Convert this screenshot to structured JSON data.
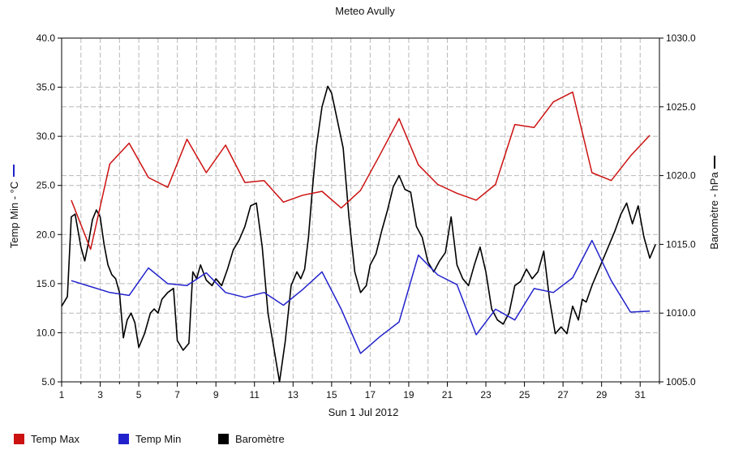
{
  "chart_data": {
    "type": "line",
    "title": "Meteo  Avully",
    "xlabel": "Sun 1 Jul 2012",
    "ylabel_left": "Temp Min - °C",
    "ylabel_right": "Baromètre - hPa",
    "xlim": [
      1,
      32
    ],
    "ylim_left": [
      5.0,
      40.0
    ],
    "ylim_right": [
      1005.0,
      1030.0
    ],
    "x_ticks": [
      1,
      3,
      5,
      7,
      9,
      11,
      13,
      15,
      17,
      19,
      21,
      23,
      25,
      27,
      29,
      31
    ],
    "x_tick_labels": [
      "1",
      "3",
      "5",
      "7",
      "9",
      "11",
      "13",
      "15",
      "17",
      "19",
      "21",
      "23",
      "25",
      "27",
      "29",
      "31"
    ],
    "y_left_ticks": [
      5,
      10,
      15,
      20,
      25,
      30,
      35,
      40
    ],
    "y_left_tick_labels": [
      "5.0",
      "10.0",
      "15.0",
      "20.0",
      "25.0",
      "30.0",
      "35.0",
      "40.0"
    ],
    "y_right_ticks": [
      1005,
      1010,
      1015,
      1020,
      1025,
      1030
    ],
    "y_right_tick_labels": [
      "1005.0",
      "1010.0",
      "1015.0",
      "1020.0",
      "1025.0",
      "1030.0"
    ],
    "grid": true,
    "legend_position": "bottom-left",
    "series": [
      {
        "name": "Temp Max",
        "color": "#cc1111",
        "axis": "left",
        "x": [
          1.5,
          2.5,
          3.5,
          4.5,
          5.5,
          6.5,
          7.5,
          8.5,
          9.5,
          10.5,
          11.5,
          12.5,
          13.5,
          14.5,
          15.5,
          16.5,
          17.5,
          18.5,
          19.5,
          20.5,
          21.5,
          22.5,
          23.5,
          24.5,
          25.5,
          26.5,
          27.5,
          28.5,
          29.5,
          30.5,
          31.5
        ],
        "values": [
          23.5,
          18.5,
          27.2,
          29.3,
          25.8,
          24.8,
          29.7,
          26.3,
          29.1,
          25.3,
          25.5,
          23.3,
          24.0,
          24.4,
          22.7,
          24.5,
          28.1,
          31.8,
          27.1,
          25.1,
          24.2,
          23.5,
          25.1,
          31.2,
          30.9,
          33.5,
          34.5,
          26.3,
          25.5,
          28.0,
          30.1
        ]
      },
      {
        "name": "Temp Min",
        "color": "#2222cc",
        "axis": "left",
        "x": [
          1.5,
          2.5,
          3.5,
          4.5,
          5.5,
          6.5,
          7.5,
          8.5,
          9.5,
          10.5,
          11.5,
          12.5,
          13.5,
          14.5,
          15.5,
          16.5,
          17.5,
          18.5,
          19.5,
          20.5,
          21.5,
          22.5,
          23.5,
          24.5,
          25.5,
          26.5,
          27.5,
          28.5,
          29.5,
          30.5,
          31.5
        ],
        "values": [
          15.3,
          14.7,
          14.1,
          13.8,
          16.6,
          15.0,
          14.8,
          16.1,
          14.1,
          13.6,
          14.1,
          12.8,
          14.4,
          16.2,
          12.4,
          7.9,
          9.6,
          11.1,
          17.9,
          15.9,
          14.9,
          9.8,
          12.4,
          11.3,
          14.5,
          14.1,
          15.6,
          19.4,
          15.3,
          12.1,
          12.2
        ]
      },
      {
        "name": "Baromètre",
        "color": "#000000",
        "axis": "right",
        "x": [
          1.0,
          1.3,
          1.5,
          1.7,
          2.0,
          2.2,
          2.4,
          2.6,
          2.8,
          3.0,
          3.2,
          3.4,
          3.6,
          3.8,
          4.0,
          4.2,
          4.4,
          4.6,
          4.8,
          5.0,
          5.3,
          5.6,
          5.8,
          6.0,
          6.2,
          6.5,
          6.8,
          7.0,
          7.3,
          7.6,
          7.8,
          8.0,
          8.2,
          8.5,
          8.8,
          9.0,
          9.3,
          9.6,
          9.9,
          10.2,
          10.5,
          10.8,
          11.1,
          11.4,
          11.7,
          12.0,
          12.3,
          12.6,
          12.9,
          13.2,
          13.4,
          13.6,
          13.8,
          14.0,
          14.2,
          14.5,
          14.8,
          15.0,
          15.3,
          15.6,
          15.9,
          16.2,
          16.5,
          16.8,
          17.0,
          17.3,
          17.6,
          17.9,
          18.2,
          18.5,
          18.8,
          19.1,
          19.4,
          19.7,
          20.0,
          20.3,
          20.6,
          20.9,
          21.2,
          21.5,
          21.8,
          22.1,
          22.4,
          22.7,
          23.0,
          23.3,
          23.6,
          23.9,
          24.2,
          24.5,
          24.8,
          25.1,
          25.4,
          25.7,
          26.0,
          26.3,
          26.6,
          26.9,
          27.2,
          27.5,
          27.8,
          28.0,
          28.2,
          28.5,
          28.8,
          29.1,
          29.4,
          29.7,
          30.0,
          30.3,
          30.6,
          30.9,
          31.2,
          31.5,
          31.8
        ],
        "values": [
          1010.5,
          1011.2,
          1017.0,
          1017.2,
          1014.8,
          1013.8,
          1015.2,
          1016.8,
          1017.5,
          1017.0,
          1015.0,
          1013.5,
          1012.8,
          1012.5,
          1011.5,
          1008.2,
          1009.5,
          1010.0,
          1009.3,
          1007.5,
          1008.5,
          1010.0,
          1010.3,
          1010.0,
          1011.0,
          1011.5,
          1011.8,
          1008.0,
          1007.3,
          1007.8,
          1013.0,
          1012.5,
          1013.5,
          1012.4,
          1012.0,
          1012.5,
          1012.0,
          1013.2,
          1014.6,
          1015.3,
          1016.3,
          1017.8,
          1018.0,
          1014.8,
          1010.0,
          1007.5,
          1005.0,
          1008.0,
          1012.0,
          1013.0,
          1012.5,
          1013.2,
          1015.5,
          1019.0,
          1022.0,
          1025.0,
          1026.5,
          1026.0,
          1024.0,
          1022.0,
          1017.0,
          1013.0,
          1011.5,
          1012.0,
          1013.5,
          1014.3,
          1016.0,
          1017.5,
          1019.2,
          1020.0,
          1019.0,
          1018.8,
          1016.3,
          1015.5,
          1013.7,
          1013.0,
          1013.8,
          1014.4,
          1017.0,
          1013.5,
          1012.5,
          1012.0,
          1013.5,
          1014.8,
          1013.0,
          1010.3,
          1009.5,
          1009.2,
          1010.0,
          1012.0,
          1012.3,
          1013.2,
          1012.5,
          1013.0,
          1014.5,
          1011.0,
          1008.5,
          1009.0,
          1008.5,
          1010.5,
          1009.5,
          1011.0,
          1010.8,
          1012.0,
          1013.0,
          1014.0,
          1015.0,
          1016.0,
          1017.2,
          1018.0,
          1016.5,
          1017.8,
          1015.5,
          1014.0,
          1015.0
        ]
      }
    ]
  }
}
